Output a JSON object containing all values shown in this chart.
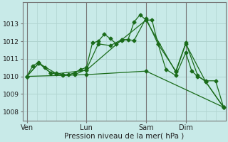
{
  "background_color": "#c8eae8",
  "grid_color": "#b0d4d0",
  "line_color": "#1a6b1a",
  "xlabel": "Pression niveau de la mer( hPa )",
  "xlabel_fontsize": 7.5,
  "yticks": [
    1008,
    1009,
    1010,
    1011,
    1012,
    1013
  ],
  "ylim": [
    1007.5,
    1014.2
  ],
  "xtick_labels": [
    "Ven",
    "Lun",
    "Sam",
    "Dim"
  ],
  "xtick_positions": [
    0,
    30,
    60,
    80
  ],
  "xlim": [
    -2,
    100
  ],
  "vline_positions": [
    0,
    30,
    60,
    80
  ],
  "line1_x": [
    0,
    3,
    6,
    9,
    12,
    15,
    18,
    21,
    24,
    27,
    30,
    33,
    36,
    39,
    42,
    45,
    48,
    51,
    54,
    57,
    60,
    63,
    66,
    70,
    75,
    80,
    83,
    86,
    90,
    95,
    99
  ],
  "line1_y": [
    1010.0,
    1010.6,
    1010.8,
    1010.5,
    1010.2,
    1010.2,
    1010.1,
    1010.1,
    1010.2,
    1010.4,
    1010.5,
    1011.9,
    1012.0,
    1012.4,
    1012.15,
    1011.85,
    1012.05,
    1012.1,
    1013.1,
    1013.5,
    1013.2,
    1013.2,
    1011.85,
    1010.4,
    1010.05,
    1011.35,
    1010.3,
    1010.0,
    1009.75,
    1009.75,
    1008.25
  ],
  "line2_x": [
    0,
    6,
    12,
    18,
    24,
    30,
    36,
    42,
    48,
    54,
    60,
    66,
    75,
    80,
    86,
    90,
    99
  ],
  "line2_y": [
    1010.0,
    1010.75,
    1010.2,
    1010.05,
    1010.1,
    1010.4,
    1011.85,
    1011.75,
    1012.1,
    1012.05,
    1013.3,
    1011.85,
    1010.3,
    1011.9,
    1010.05,
    1009.7,
    1008.25
  ],
  "line3_x": [
    0,
    6,
    15,
    30,
    48,
    60,
    75,
    80,
    90,
    99
  ],
  "line3_y": [
    1010.0,
    1010.75,
    1010.15,
    1010.35,
    1012.1,
    1013.2,
    1010.25,
    1011.85,
    1009.7,
    1008.25
  ],
  "line4_x": [
    0,
    30,
    60,
    99
  ],
  "line4_y": [
    1010.0,
    1010.1,
    1010.3,
    1008.25
  ],
  "marker": "D",
  "markersize": 2.5
}
